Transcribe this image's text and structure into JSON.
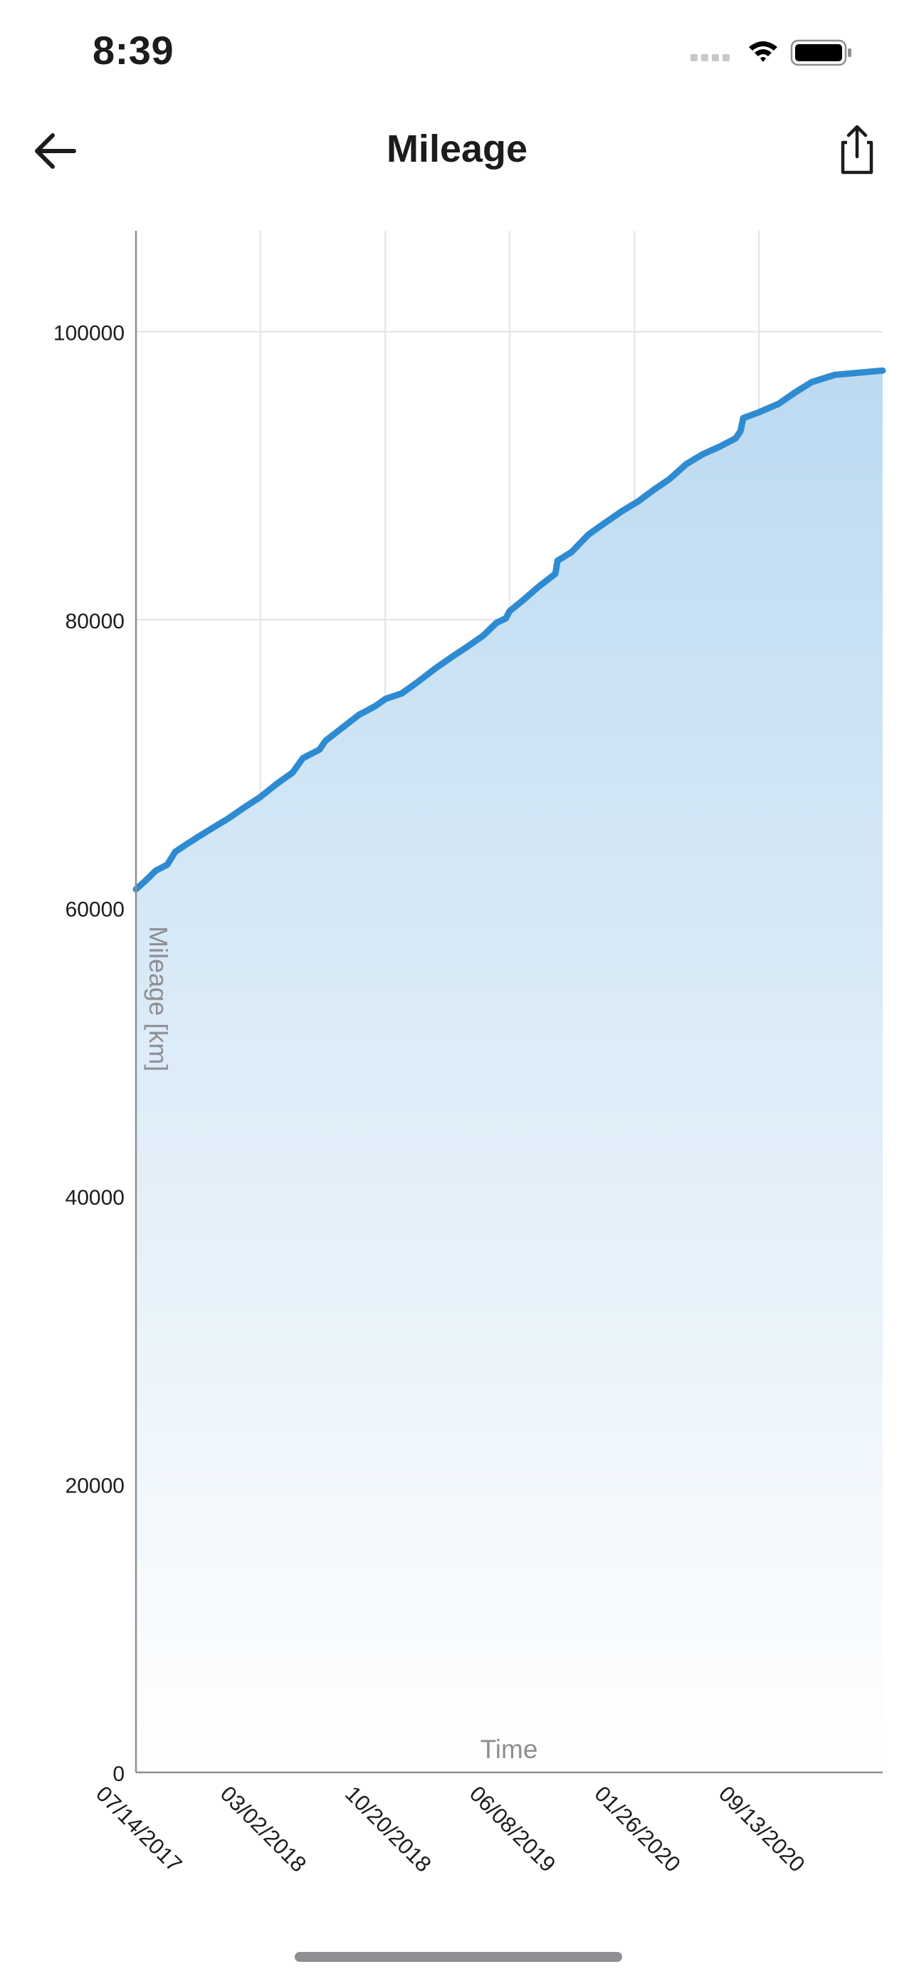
{
  "status_bar": {
    "time": "8:39"
  },
  "nav": {
    "title": "Mileage",
    "back_icon": "arrow-left-icon",
    "share_icon": "share-icon"
  },
  "colors": {
    "line": "#2f8bd1",
    "fill_top": "#bcdaf1",
    "fill_bottom": "#ffffff",
    "grid": "#e3e3e6",
    "axis": "#8e8e93"
  },
  "chart_data": {
    "type": "area",
    "title": "",
    "xlabel": "Time",
    "ylabel": "Mileage [km]",
    "x_type": "date",
    "xlim": [
      "2017-07-14",
      "2021-05-01"
    ],
    "ylim": [
      0,
      107000
    ],
    "yticks": [
      0,
      20000,
      40000,
      60000,
      80000,
      100000
    ],
    "xticks": [
      {
        "date": "2017-07-14",
        "label": "07/14/2017"
      },
      {
        "date": "2018-03-02",
        "label": "03/02/2018"
      },
      {
        "date": "2018-10-20",
        "label": "10/20/2018"
      },
      {
        "date": "2019-06-08",
        "label": "06/08/2019"
      },
      {
        "date": "2020-01-26",
        "label": "01/26/2020"
      },
      {
        "date": "2020-09-13",
        "label": "09/13/2020"
      }
    ],
    "grid": true,
    "series": [
      {
        "points": [
          [
            "2017-07-14",
            61300
          ],
          [
            "2017-08-01",
            61900
          ],
          [
            "2017-08-20",
            62600
          ],
          [
            "2017-09-10",
            63000
          ],
          [
            "2017-09-25",
            63900
          ],
          [
            "2017-10-15",
            64400
          ],
          [
            "2017-11-05",
            64900
          ],
          [
            "2017-12-01",
            65500
          ],
          [
            "2018-01-01",
            66200
          ],
          [
            "2018-02-01",
            67000
          ],
          [
            "2018-03-02",
            67700
          ],
          [
            "2018-04-01",
            68600
          ],
          [
            "2018-05-01",
            69400
          ],
          [
            "2018-05-20",
            70400
          ],
          [
            "2018-06-20",
            71000
          ],
          [
            "2018-07-01",
            71600
          ],
          [
            "2018-08-01",
            72500
          ],
          [
            "2018-09-01",
            73400
          ],
          [
            "2018-10-01",
            74000
          ],
          [
            "2018-10-20",
            74500
          ],
          [
            "2018-11-20",
            74900
          ],
          [
            "2018-12-20",
            75700
          ],
          [
            "2019-01-20",
            76600
          ],
          [
            "2019-02-20",
            77400
          ],
          [
            "2019-03-20",
            78100
          ],
          [
            "2019-04-20",
            78900
          ],
          [
            "2019-05-15",
            79800
          ],
          [
            "2019-06-01",
            80100
          ],
          [
            "2019-06-08",
            80600
          ],
          [
            "2019-07-01",
            81300
          ],
          [
            "2019-08-01",
            82300
          ],
          [
            "2019-09-01",
            83200
          ],
          [
            "2019-09-05",
            84100
          ],
          [
            "2019-10-01",
            84700
          ],
          [
            "2019-11-01",
            85900
          ],
          [
            "2019-12-01",
            86700
          ],
          [
            "2020-01-01",
            87500
          ],
          [
            "2020-02-01",
            88200
          ],
          [
            "2020-03-01",
            89000
          ],
          [
            "2020-04-01",
            89800
          ],
          [
            "2020-05-01",
            90800
          ],
          [
            "2020-06-01",
            91500
          ],
          [
            "2020-07-01",
            92000
          ],
          [
            "2020-08-01",
            92600
          ],
          [
            "2020-08-10",
            93100
          ],
          [
            "2020-08-15",
            94000
          ],
          [
            "2020-09-13",
            94400
          ],
          [
            "2020-10-20",
            95000
          ],
          [
            "2020-11-20",
            95800
          ],
          [
            "2020-12-20",
            96500
          ],
          [
            "2021-02-01",
            97000
          ],
          [
            "2021-05-01",
            97300
          ]
        ]
      }
    ]
  }
}
